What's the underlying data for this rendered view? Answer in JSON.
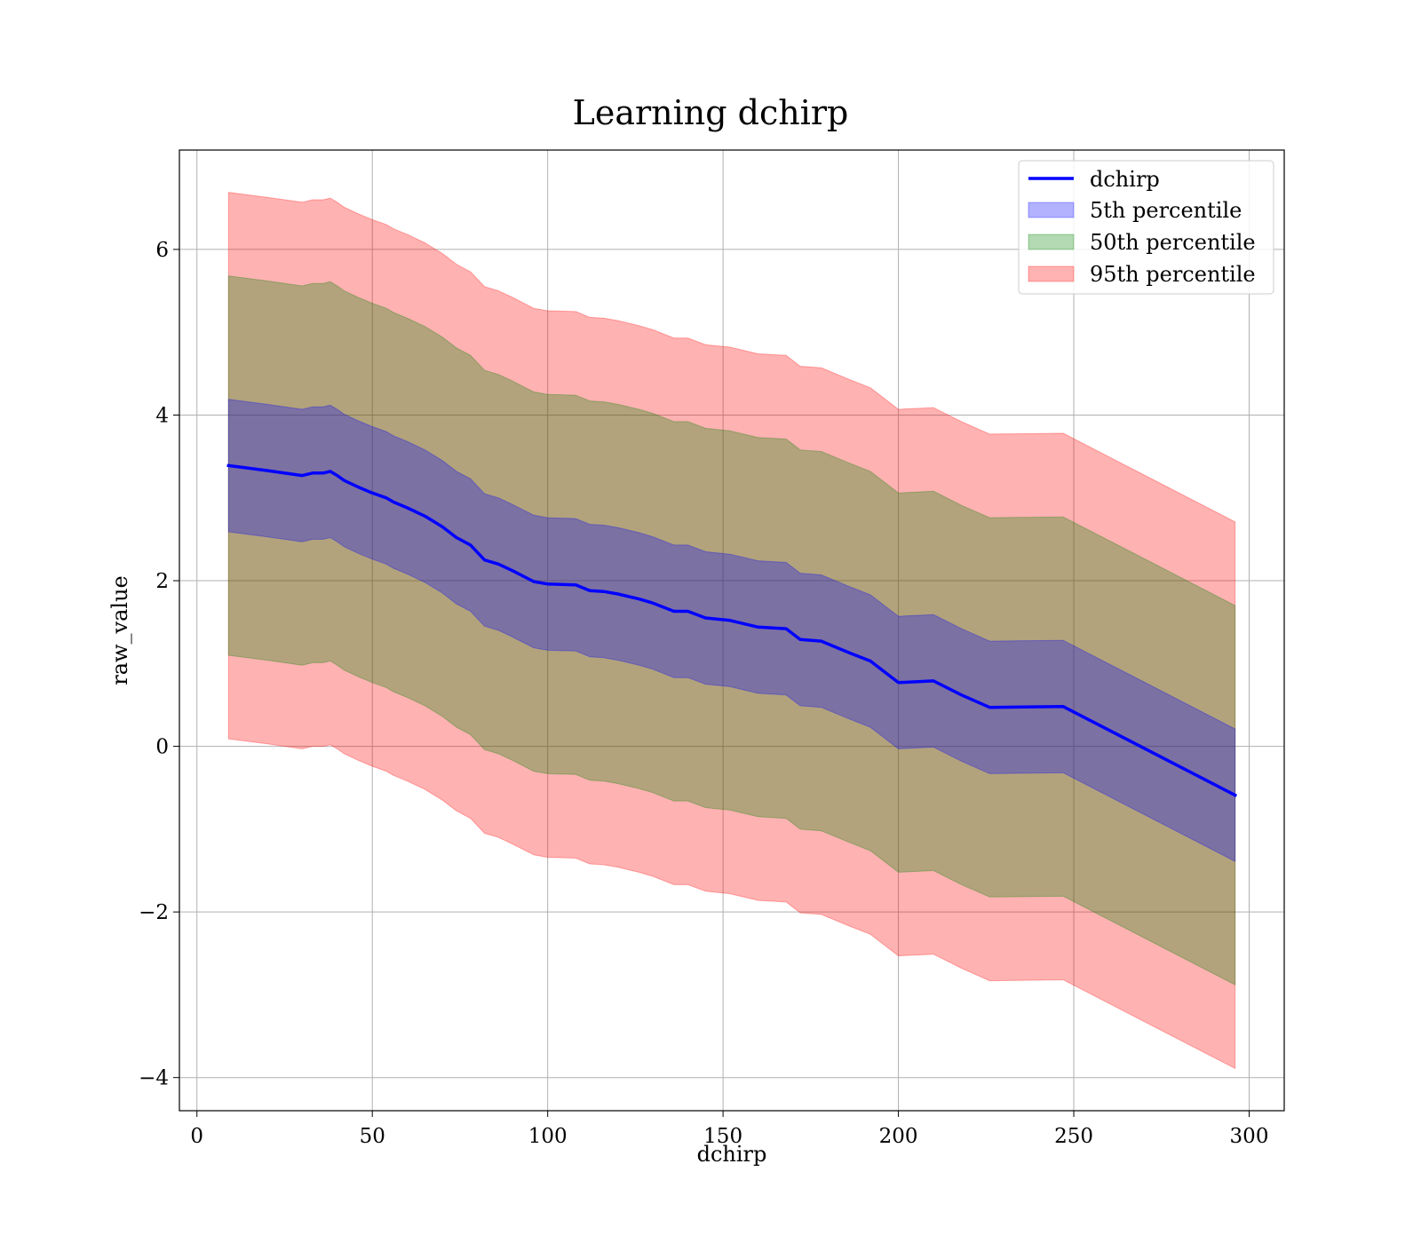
{
  "chart_data": {
    "type": "area",
    "title": "Learning dchirp",
    "xlabel": "dchirp",
    "ylabel": "raw_value",
    "xlim": [
      -5,
      310
    ],
    "ylim": [
      -4.4,
      7.2
    ],
    "xticks": [
      0,
      50,
      100,
      150,
      200,
      250,
      300
    ],
    "yticks": [
      -4,
      -2,
      0,
      2,
      4,
      6
    ],
    "xtick_labels": [
      "0",
      "50",
      "100",
      "150",
      "200",
      "250",
      "300"
    ],
    "ytick_labels": [
      "−4",
      "−2",
      "0",
      "2",
      "4",
      "6"
    ],
    "grid": true,
    "legend_position": "top-right",
    "x": [
      9,
      20,
      30,
      33,
      36,
      38,
      40,
      42,
      46,
      50,
      54,
      56,
      60,
      65,
      70,
      74,
      78,
      82,
      86,
      90,
      96,
      100,
      108,
      112,
      116,
      120,
      126,
      130,
      136,
      140,
      145,
      152,
      160,
      168,
      172,
      178,
      186,
      192,
      200,
      210,
      218,
      226,
      247,
      296
    ],
    "series": [
      {
        "name": "dchirp",
        "kind": "line",
        "color": "#0000ff",
        "values": [
          3.39,
          3.33,
          3.27,
          3.3,
          3.3,
          3.32,
          3.27,
          3.21,
          3.13,
          3.06,
          3.0,
          2.95,
          2.88,
          2.78,
          2.65,
          2.52,
          2.43,
          2.25,
          2.2,
          2.12,
          1.99,
          1.96,
          1.95,
          1.88,
          1.87,
          1.84,
          1.78,
          1.73,
          1.63,
          1.63,
          1.55,
          1.52,
          1.44,
          1.42,
          1.29,
          1.27,
          1.13,
          1.03,
          0.77,
          0.79,
          0.62,
          0.47,
          0.48,
          -0.59
        ]
      },
      {
        "name": "5th percentile",
        "kind": "band",
        "color": "#0000ff",
        "offset": 0.8
      },
      {
        "name": "50th percentile",
        "kind": "band",
        "color": "#008000",
        "offset": 2.29
      },
      {
        "name": "95th percentile",
        "kind": "band",
        "color": "#ff0000",
        "offset": 3.3
      }
    ]
  }
}
